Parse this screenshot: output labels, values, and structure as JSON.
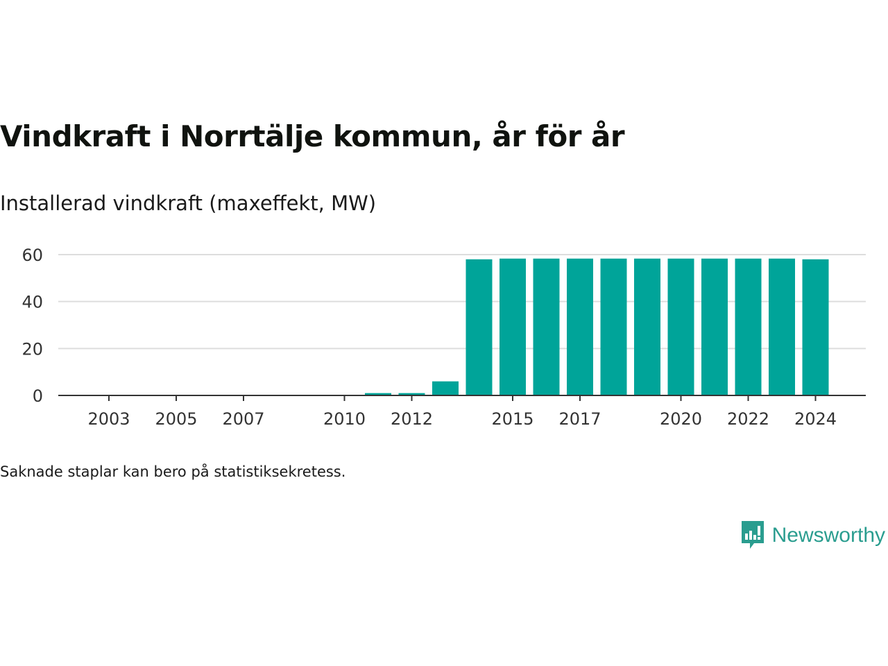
{
  "title": "Vindkraft i Norrtälje kommun, år för år",
  "subtitle": "Installerad vindkraft (maxeffekt, MW)",
  "footnote": "Saknade staplar kan bero på statistiksekretess.",
  "brand": {
    "name": "Newsworthy",
    "color": "#2a9d8f",
    "icon": "newsworthy-logo-icon"
  },
  "chart_data": {
    "type": "bar",
    "title": "Vindkraft i Norrtälje kommun, år för år",
    "ylabel": "Installerad vindkraft (maxeffekt, MW)",
    "xlabel": "",
    "bar_color": "#00a499",
    "grid": true,
    "ylim": [
      0,
      60
    ],
    "yticks": [
      0,
      20,
      40,
      60
    ],
    "xticks": [
      2003,
      2005,
      2007,
      2010,
      2012,
      2015,
      2017,
      2020,
      2022,
      2024
    ],
    "categories": [
      2003,
      2004,
      2005,
      2006,
      2007,
      2008,
      2009,
      2010,
      2011,
      2012,
      2013,
      2014,
      2015,
      2016,
      2017,
      2018,
      2019,
      2020,
      2021,
      2022,
      2023,
      2024
    ],
    "values": [
      0,
      0,
      0,
      0,
      0,
      null,
      null,
      0,
      1,
      1,
      6,
      58,
      58.3,
      58.3,
      58.3,
      58.3,
      58.3,
      58.3,
      58.3,
      58.3,
      58.3,
      58
    ]
  }
}
